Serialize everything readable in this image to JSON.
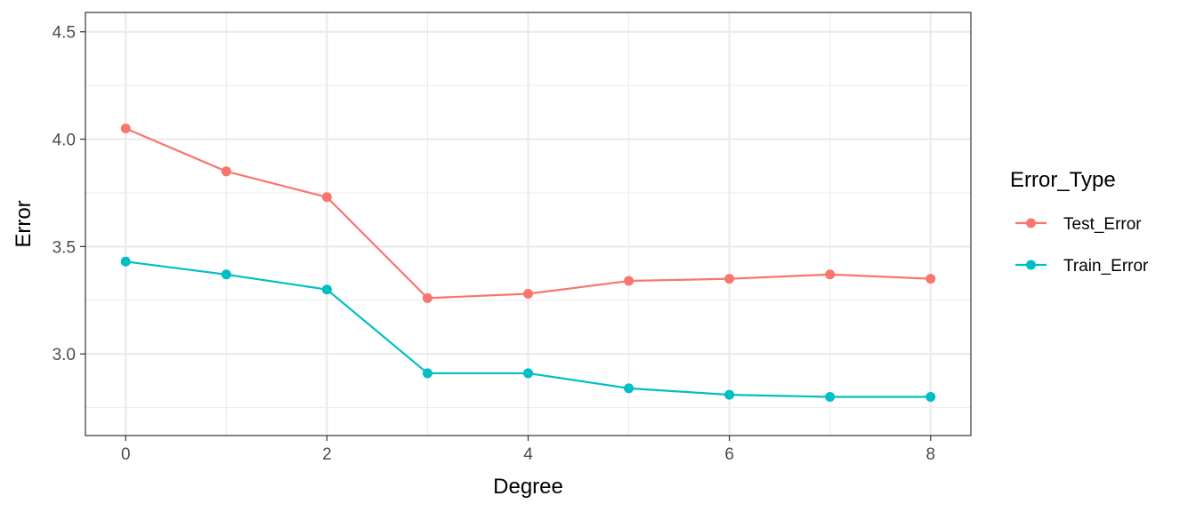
{
  "chart_data": {
    "type": "line",
    "xlabel": "Degree",
    "ylabel": "Error",
    "x": [
      0,
      1,
      2,
      3,
      4,
      5,
      6,
      7,
      8
    ],
    "xlim": [
      -0.4,
      8.4
    ],
    "ylim": [
      2.62,
      4.59
    ],
    "x_ticks": [
      0,
      2,
      4,
      6,
      8
    ],
    "y_ticks": [
      3.0,
      3.5,
      4.0,
      4.5
    ],
    "x_tick_labels": [
      "0",
      "2",
      "4",
      "6",
      "8"
    ],
    "y_tick_labels": [
      "3.0",
      "3.5",
      "4.0",
      "4.5"
    ],
    "grid": true,
    "legend": {
      "title": "Error_Type",
      "placement": "right"
    },
    "series": [
      {
        "name": "Test_Error",
        "color": "#F8766D",
        "values": [
          4.05,
          3.85,
          3.73,
          3.26,
          3.28,
          3.34,
          3.35,
          3.37,
          3.35
        ]
      },
      {
        "name": "Train_Error",
        "color": "#00BFC4",
        "values": [
          3.43,
          3.37,
          3.3,
          2.91,
          2.91,
          2.84,
          2.81,
          2.8,
          2.8
        ]
      }
    ]
  }
}
